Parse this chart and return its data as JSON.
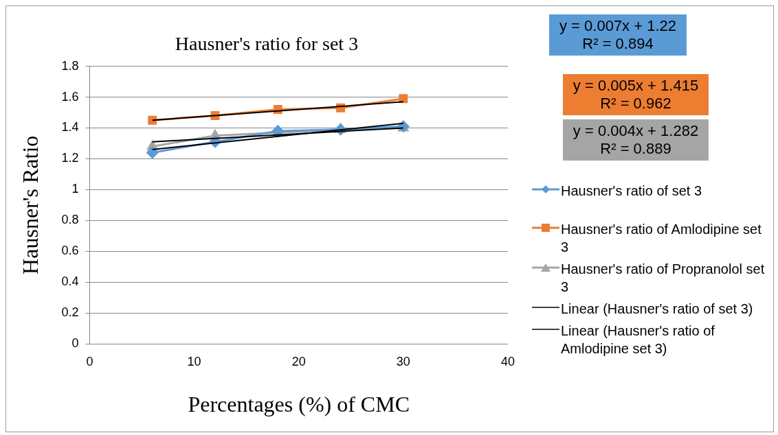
{
  "chart_data": {
    "type": "line",
    "title": "Hausner's ratio for set 3",
    "xlabel": "Percentages (%) of CMC",
    "ylabel": "Hausner's Ratio",
    "xlim": [
      0,
      40
    ],
    "xticks": [
      0,
      10,
      20,
      30,
      40
    ],
    "ylim": [
      0,
      1.8
    ],
    "yticks": [
      0,
      0.2,
      0.4,
      0.6,
      0.8,
      1,
      1.2,
      1.4,
      1.6,
      1.8
    ],
    "grid": "y",
    "legend": "right",
    "x": [
      6,
      12,
      18,
      24,
      30
    ],
    "series": [
      {
        "name": "Hausner's ratio of set 3",
        "color": "#5b9bd5",
        "marker": "diamond",
        "values": [
          1.24,
          1.31,
          1.38,
          1.39,
          1.41
        ]
      },
      {
        "name": "Hausner's ratio of Amlodipine set 3",
        "color": "#ed7d31",
        "marker": "square",
        "values": [
          1.45,
          1.48,
          1.52,
          1.53,
          1.59
        ]
      },
      {
        "name": "Hausner's ratio of Propranolol set 3",
        "color": "#a5a5a5",
        "marker": "triangle",
        "values": [
          1.28,
          1.35,
          1.37,
          1.39,
          1.4
        ]
      },
      {
        "name": "Linear (Hausner's ratio of set 3)",
        "type": "line",
        "color": "#000000",
        "marker": "none",
        "values": [
          1.26,
          null,
          null,
          null,
          1.43
        ]
      },
      {
        "name": "Linear (Hausner's ratio of Amlodipine set 3)",
        "type": "line",
        "color": "#000000",
        "marker": "none",
        "values": [
          1.45,
          null,
          null,
          null,
          1.57
        ]
      },
      {
        "type": "line",
        "color": "#000000",
        "marker": "none",
        "values": [
          1.31,
          null,
          null,
          null,
          1.4
        ]
      }
    ],
    "annotations": [
      "y = 0.007x + 1.22\nR² = 0.894",
      "y = 0.005x + 1.415\nR² = 0.962",
      "y = 0.004x + 1.282\nR² = 0.889"
    ]
  }
}
